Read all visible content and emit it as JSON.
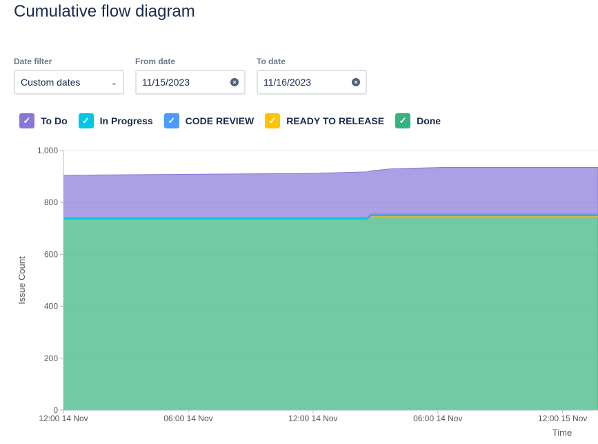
{
  "title": "Cumulative flow diagram",
  "filters": {
    "date_filter_label": "Date filter",
    "date_filter_value": "Custom dates",
    "from_label": "From date",
    "from_value": "11/15/2023",
    "to_label": "To date",
    "to_value": "11/16/2023"
  },
  "chart_data": {
    "type": "area",
    "stacked": true,
    "title": "Cumulative flow diagram",
    "xlabel": "Time",
    "ylabel": "Issue Count",
    "ylim": [
      0,
      1000
    ],
    "y_ticks": [
      "0",
      "200",
      "400",
      "600",
      "800",
      "1,000"
    ],
    "y_tick_values": [
      0,
      200,
      400,
      600,
      800,
      1000
    ],
    "x_unit": "hours from first tick",
    "xlim": [
      0,
      25.7
    ],
    "x_ticks": [
      {
        "value": 0,
        "label": "12:00 14 Nov"
      },
      {
        "value": 6,
        "label": "06:00 14 Nov"
      },
      {
        "value": 12,
        "label": "12:00 14 Nov"
      },
      {
        "value": 18,
        "label": "06:00 14 Nov"
      },
      {
        "value": 24,
        "label": "12:00 15 Nov"
      }
    ],
    "grid": true,
    "legend_position": "top-left",
    "x": [
      0,
      11.9,
      14.6,
      14.8,
      15.8,
      18.3,
      25.7
    ],
    "series": [
      {
        "name": "Done",
        "color": "#36b37e",
        "values": [
          733,
          733,
          733,
          745,
          745,
          745,
          745
        ]
      },
      {
        "name": "READY TO RELEASE",
        "color": "#ffc400",
        "values": [
          2,
          2,
          2,
          3,
          3,
          3,
          3
        ]
      },
      {
        "name": "CODE REVIEW",
        "color": "#4c9aff",
        "values": [
          3,
          3,
          3,
          3,
          3,
          3,
          3
        ]
      },
      {
        "name": "In Progress",
        "color": "#00c7e6",
        "values": [
          4,
          4,
          4,
          4,
          4,
          4,
          4
        ]
      },
      {
        "name": "To Do",
        "color": "#8777d9",
        "values": [
          163,
          170,
          176,
          167,
          175,
          180,
          180
        ]
      }
    ]
  },
  "legend": [
    {
      "label": "To Do",
      "color": "#8777d9"
    },
    {
      "label": "In Progress",
      "color": "#00c7e6"
    },
    {
      "label": "CODE REVIEW",
      "color": "#4c9aff"
    },
    {
      "label": "READY TO RELEASE",
      "color": "#ffc400"
    },
    {
      "label": "Done",
      "color": "#36b37e"
    }
  ]
}
